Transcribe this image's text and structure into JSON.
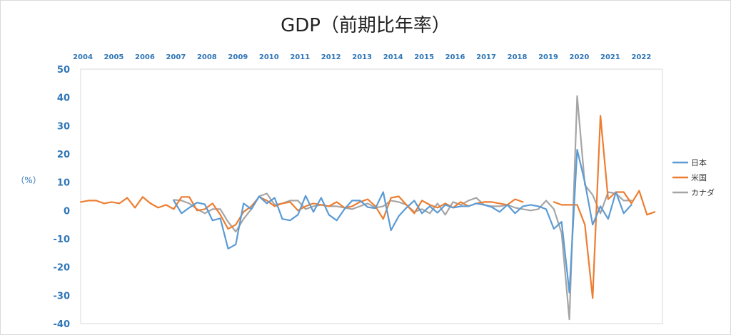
{
  "chart_data": {
    "type": "line",
    "title": "GDP（前期比年率）",
    "ylabel": "（%）",
    "ylim": [
      -40,
      50
    ],
    "yticks": [
      50,
      40,
      30,
      20,
      10,
      0,
      -10,
      -20,
      -30,
      -40
    ],
    "xlim": [
      2004.0,
      2022.75
    ],
    "x_tick_labels": [
      "2004",
      "2005",
      "2006",
      "2007",
      "2008",
      "2009",
      "2010",
      "2011",
      "2012",
      "2013",
      "2014",
      "2015",
      "2016",
      "2017",
      "2018",
      "2019",
      "2020",
      "2021",
      "2022"
    ],
    "legend_position": "right",
    "grid": false,
    "series": [
      {
        "name": "日本",
        "color": "#5b9bd5",
        "start": 2007.0,
        "values": [
          3.5,
          -1.0,
          1.0,
          2.8,
          2.2,
          -3.5,
          -2.8,
          -13.5,
          -12.0,
          2.5,
          0.5,
          5.0,
          2.5,
          4.5,
          -3.0,
          -3.5,
          -1.5,
          5.2,
          -0.5,
          4.5,
          -1.5,
          -3.5,
          0.5,
          3.5,
          3.5,
          1.2,
          0.8,
          6.5,
          -7.0,
          -2.0,
          1.0,
          3.5,
          -1.0,
          1.5,
          -0.8,
          2.0,
          1.0,
          1.5,
          1.5,
          2.5,
          2.0,
          1.2,
          -0.5,
          2.0,
          -1.0,
          1.5,
          2.0,
          1.5,
          0.5,
          -6.5,
          -4.0,
          -29.0,
          21.5,
          10.0,
          -5.0,
          1.5,
          -3.0,
          6.5,
          -1.0,
          2.0
        ]
      },
      {
        "name": "米国",
        "color": "#ed7d31",
        "start": 2004.0,
        "values": [
          3.0,
          3.5,
          3.5,
          2.5,
          3.0,
          2.5,
          4.5,
          1.0,
          4.8,
          2.5,
          1.0,
          2.0,
          0.5,
          4.8,
          4.8,
          0.0,
          0.5,
          2.5,
          -1.5,
          -6.5,
          -5.0,
          -0.5,
          1.5,
          4.8,
          3.5,
          1.5,
          2.5,
          3.0,
          0.0,
          1.5,
          2.5,
          2.0,
          1.5,
          3.0,
          1.0,
          1.5,
          3.0,
          4.0,
          1.5,
          -3.0,
          4.5,
          5.0,
          2.0,
          -1.0,
          3.5,
          2.0,
          1.0,
          2.5,
          1.0,
          3.0,
          1.5,
          2.5,
          3.0,
          3.0,
          2.5,
          2.0,
          4.0,
          3.0,
          null,
          null,
          null,
          3.0,
          2.0,
          2.0,
          2.0,
          -5.0,
          -31.0,
          33.5,
          4.0,
          6.5,
          6.5,
          2.5,
          7.0,
          -1.5,
          -0.5
        ]
      },
      {
        "name": "カナダ",
        "color": "#a5a5a5",
        "start": 2007.0,
        "values": [
          3.8,
          3.5,
          2.5,
          0.5,
          -1.0,
          0.5,
          0.5,
          -4.0,
          -7.5,
          -3.0,
          0.5,
          5.0,
          6.0,
          2.0,
          2.5,
          3.5,
          3.5,
          0.5,
          1.5,
          2.0,
          1.5,
          1.5,
          1.0,
          0.5,
          1.5,
          2.5,
          1.0,
          1.5,
          3.5,
          3.0,
          2.0,
          -0.5,
          0.5,
          -1.0,
          2.5,
          -1.5,
          3.0,
          2.0,
          3.5,
          4.5,
          2.0,
          1.5,
          1.5,
          2.0,
          1.0,
          0.5,
          0.0,
          0.5,
          3.5,
          0.5,
          -8.0,
          -38.5,
          40.5,
          9.0,
          5.5,
          -1.0,
          6.5,
          6.0,
          3.5,
          3.5
        ]
      }
    ]
  }
}
